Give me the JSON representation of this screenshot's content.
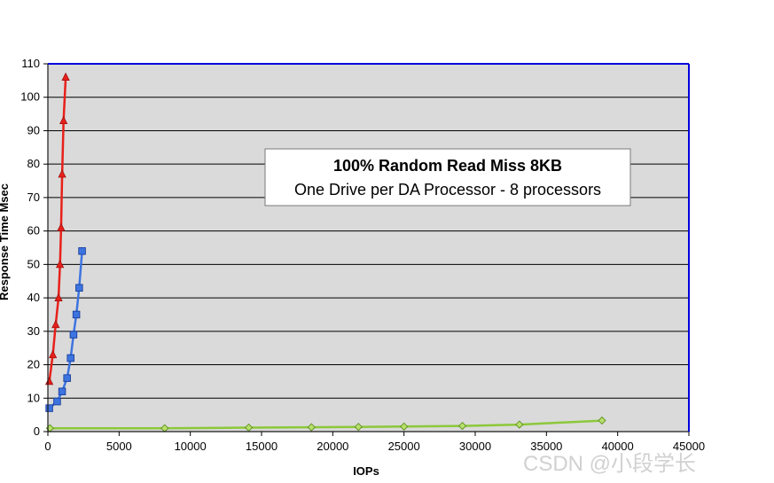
{
  "chart_data": {
    "type": "line",
    "title": "100% Random Read Miss 8KB",
    "subtitle": "One Drive per DA Processor - 8 processors",
    "xlabel": "IOPs",
    "ylabel": "Response Time Msec",
    "xlim": [
      0,
      45000
    ],
    "ylim": [
      0,
      110
    ],
    "x_ticks": [
      0,
      5000,
      10000,
      15000,
      20000,
      25000,
      30000,
      35000,
      40000,
      45000
    ],
    "y_ticks": [
      0,
      10,
      20,
      30,
      40,
      50,
      60,
      70,
      80,
      90,
      100,
      110
    ],
    "grid": true,
    "legend": "none",
    "series": [
      {
        "name": "red",
        "color": "#e8201a",
        "marker": "triangle",
        "x": [
          100,
          350,
          550,
          750,
          850,
          930,
          1000,
          1100,
          1250
        ],
        "y": [
          15,
          23,
          32,
          40,
          50,
          61,
          77,
          93,
          106
        ]
      },
      {
        "name": "blue",
        "color": "#3d74e0",
        "marker": "square",
        "x": [
          100,
          650,
          1000,
          1350,
          1600,
          1800,
          2000,
          2200,
          2400
        ],
        "y": [
          7,
          9,
          12,
          16,
          22,
          29,
          35,
          43,
          54
        ]
      },
      {
        "name": "green",
        "color": "#8cc83a",
        "marker": "diamond",
        "x": [
          150,
          8200,
          14100,
          18500,
          21800,
          25000,
          29100,
          33100,
          38900
        ],
        "y": [
          1,
          1,
          1.2,
          1.3,
          1.4,
          1.5,
          1.7,
          2.1,
          3.3
        ]
      }
    ]
  },
  "watermark": "CSDN @小段学长"
}
